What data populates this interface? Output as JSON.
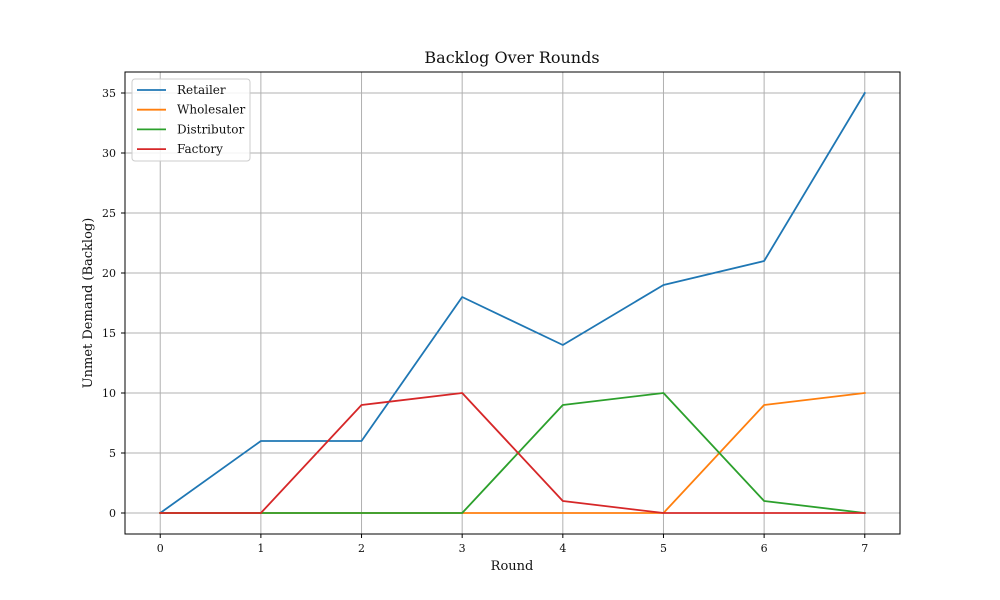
{
  "chart_data": {
    "type": "line",
    "title": "Backlog Over Rounds",
    "xlabel": "Round",
    "ylabel": "Unmet Demand (Backlog)",
    "x": [
      0,
      1,
      2,
      3,
      4,
      5,
      6,
      7
    ],
    "xlim": [
      -0.35,
      7.35
    ],
    "ylim": [
      -1.75,
      36.75
    ],
    "xticks": [
      0,
      1,
      2,
      3,
      4,
      5,
      6,
      7
    ],
    "yticks": [
      0,
      5,
      10,
      15,
      20,
      25,
      30,
      35
    ],
    "grid": true,
    "legend_position": "top-left",
    "series": [
      {
        "name": "Retailer",
        "color": "#1f77b4",
        "values": [
          0,
          6,
          6,
          18,
          14,
          19,
          21,
          35
        ]
      },
      {
        "name": "Wholesaler",
        "color": "#ff7f0e",
        "values": [
          0,
          0,
          0,
          0,
          0,
          0,
          9,
          10
        ]
      },
      {
        "name": "Distributor",
        "color": "#2ca02c",
        "values": [
          0,
          0,
          0,
          0,
          9,
          10,
          1,
          0
        ]
      },
      {
        "name": "Factory",
        "color": "#d62728",
        "values": [
          0,
          0,
          9,
          10,
          1,
          0,
          0,
          0
        ]
      }
    ]
  }
}
